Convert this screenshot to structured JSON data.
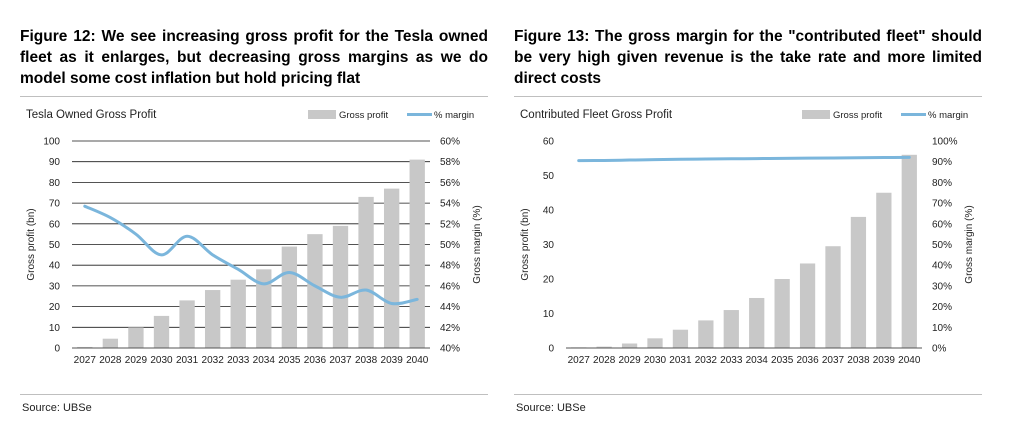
{
  "figures": [
    {
      "title": "Figure 12: We see increasing gross profit for the Tesla owned fleet as it enlarges, but decreasing gross margins as we do model some cost inflation but hold pricing flat",
      "source": "Source: UBSe"
    },
    {
      "title": "Figure 13: The gross margin for the \"contributed fleet\" should be very high given revenue is the take rate and more limited direct costs",
      "source": "Source: UBSe"
    }
  ],
  "colors": {
    "bar": "#c8c8c8",
    "line": "#7bb6dc",
    "grid": "#1a1a1a",
    "axis_text": "#222222"
  },
  "chart_data": [
    {
      "type": "bar",
      "title": "Tesla Owned Gross Profit",
      "categories": [
        "2027",
        "2028",
        "2029",
        "2030",
        "2031",
        "2032",
        "2033",
        "2034",
        "2035",
        "2036",
        "2037",
        "2038",
        "2039",
        "2040"
      ],
      "series": [
        {
          "name": "Gross profit",
          "type": "bar",
          "axis": "left",
          "values": [
            0.5,
            4.5,
            10,
            15.5,
            23,
            28,
            33,
            38,
            49,
            55,
            59,
            73,
            77,
            91
          ]
        },
        {
          "name": "% margin",
          "type": "line",
          "axis": "right",
          "values": [
            53.7,
            52.6,
            51.0,
            49.0,
            50.8,
            49.0,
            47.6,
            46.2,
            47.3,
            46.0,
            44.9,
            45.6,
            44.3,
            44.7
          ]
        }
      ],
      "ylabel": "Gross profit (bn)",
      "y2label": "Gross margin (%)",
      "ylim": [
        0,
        100
      ],
      "yticks": [
        "0",
        "10",
        "20",
        "30",
        "40",
        "50",
        "60",
        "70",
        "80",
        "90",
        "100"
      ],
      "y2lim": [
        40,
        60
      ],
      "y2ticks": [
        "40%",
        "42%",
        "44%",
        "46%",
        "48%",
        "50%",
        "52%",
        "54%",
        "56%",
        "58%",
        "60%"
      ],
      "grid": true,
      "legend": "top-right"
    },
    {
      "type": "bar",
      "title": "Contributed  Fleet Gross Profit",
      "categories": [
        "2027",
        "2028",
        "2029",
        "2030",
        "2031",
        "2032",
        "2033",
        "2034",
        "2035",
        "2036",
        "2037",
        "2038",
        "2039",
        "2040"
      ],
      "series": [
        {
          "name": "Gross profit",
          "type": "bar",
          "axis": "left",
          "values": [
            0.2,
            0.4,
            1.3,
            2.8,
            5.3,
            8.0,
            11.0,
            14.5,
            20.0,
            24.5,
            29.5,
            38.0,
            45.0,
            56.0
          ]
        },
        {
          "name": "% margin",
          "type": "line",
          "axis": "right",
          "values": [
            90.5,
            90.6,
            90.8,
            91.0,
            91.2,
            91.3,
            91.4,
            91.5,
            91.6,
            91.7,
            91.8,
            91.9,
            92.0,
            92.1
          ]
        }
      ],
      "ylabel": "Gross profit (bn)",
      "y2label": "Gross margin (%)",
      "ylim": [
        0,
        60
      ],
      "yticks": [
        "0",
        "10",
        "20",
        "30",
        "40",
        "50",
        "60"
      ],
      "y2lim": [
        0,
        100
      ],
      "y2ticks": [
        "0%",
        "10%",
        "20%",
        "30%",
        "40%",
        "50%",
        "60%",
        "70%",
        "80%",
        "90%",
        "100%"
      ],
      "grid": false,
      "legend": "top-right"
    }
  ]
}
